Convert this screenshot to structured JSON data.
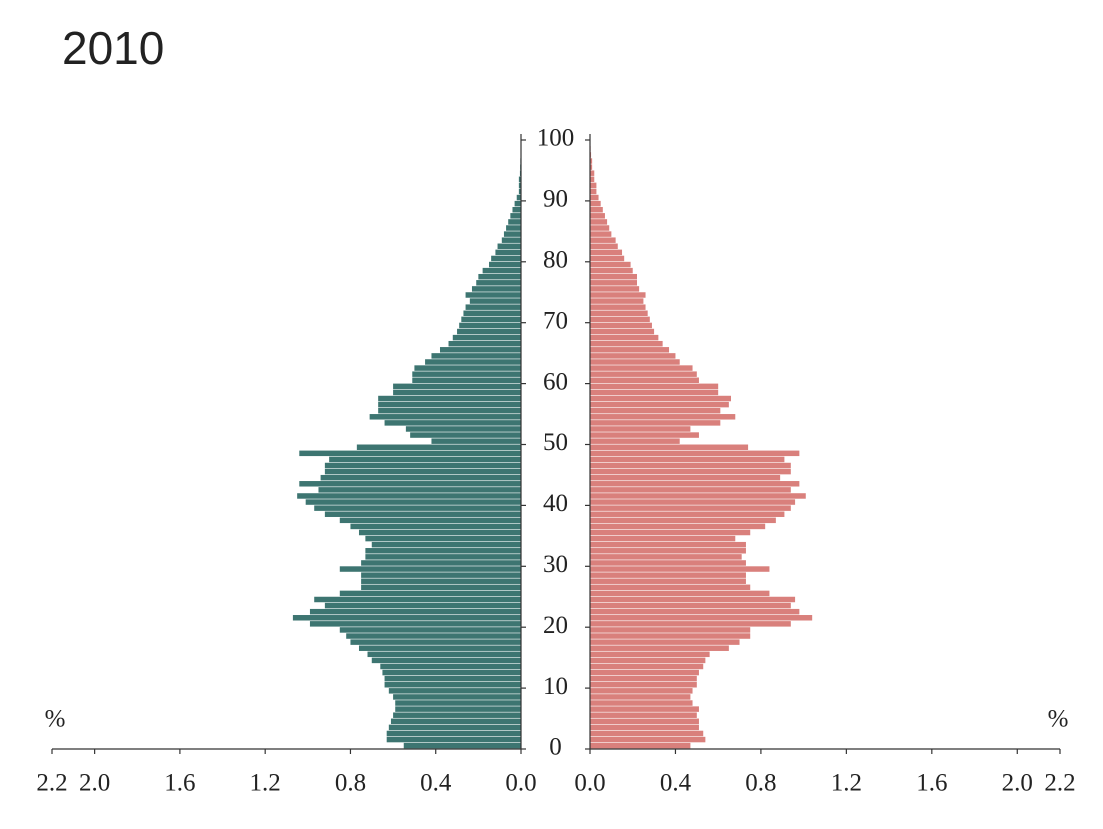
{
  "chart_data": {
    "type": "pyramid",
    "title": "2010",
    "xlabel": "%",
    "y": [
      0,
      1,
      2,
      3,
      4,
      5,
      6,
      7,
      8,
      9,
      10,
      11,
      12,
      13,
      14,
      15,
      16,
      17,
      18,
      19,
      20,
      21,
      22,
      23,
      24,
      25,
      26,
      27,
      28,
      29,
      30,
      31,
      32,
      33,
      34,
      35,
      36,
      37,
      38,
      39,
      40,
      41,
      42,
      43,
      44,
      45,
      46,
      47,
      48,
      49,
      50,
      51,
      52,
      53,
      54,
      55,
      56,
      57,
      58,
      59,
      60,
      61,
      62,
      63,
      64,
      65,
      66,
      67,
      68,
      69,
      70,
      71,
      72,
      73,
      74,
      75,
      76,
      77,
      78,
      79,
      80,
      81,
      82,
      83,
      84,
      85,
      86,
      87,
      88,
      89,
      90,
      91,
      92,
      93,
      94,
      95,
      96,
      97,
      98,
      99,
      100
    ],
    "ylim": [
      0,
      100
    ],
    "yticks": [
      0,
      10,
      20,
      30,
      40,
      50,
      60,
      70,
      80,
      90,
      100
    ],
    "xlim": [
      0,
      2.2
    ],
    "xticks": [
      {
        "value": 0,
        "label": "0.0"
      },
      {
        "value": 0.4,
        "label": "0.4"
      },
      {
        "value": 0.8,
        "label": "0.8"
      },
      {
        "value": 1.2,
        "label": "1.2"
      },
      {
        "value": 1.6,
        "label": "1.6"
      },
      {
        "value": 2,
        "label": "2.0"
      },
      {
        "value": 2.2,
        "label": "2.2"
      }
    ],
    "series": [
      {
        "color": "#3d7571",
        "values": [
          0.55,
          0.63,
          0.63,
          0.62,
          0.61,
          0.6,
          0.59,
          0.59,
          0.6,
          0.62,
          0.64,
          0.64,
          0.65,
          0.66,
          0.7,
          0.72,
          0.76,
          0.8,
          0.82,
          0.85,
          0.99,
          1.07,
          0.99,
          0.92,
          0.97,
          0.85,
          0.75,
          0.75,
          0.75,
          0.85,
          0.75,
          0.73,
          0.73,
          0.7,
          0.73,
          0.76,
          0.8,
          0.85,
          0.92,
          0.97,
          1.01,
          1.05,
          0.95,
          1.04,
          0.94,
          0.92,
          0.92,
          0.9,
          1.04,
          0.77,
          0.42,
          0.52,
          0.54,
          0.64,
          0.71,
          0.67,
          0.67,
          0.67,
          0.6,
          0.6,
          0.51,
          0.51,
          0.5,
          0.45,
          0.42,
          0.38,
          0.34,
          0.32,
          0.3,
          0.29,
          0.28,
          0.27,
          0.26,
          0.24,
          0.26,
          0.23,
          0.21,
          0.2,
          0.18,
          0.15,
          0.14,
          0.12,
          0.11,
          0.09,
          0.08,
          0.07,
          0.06,
          0.05,
          0.04,
          0.03,
          0.02,
          0.01,
          0.01,
          0.01,
          0.005,
          0.004,
          0.003,
          0.002,
          0.001,
          0.001,
          0
        ]
      },
      {
        "color": "#d9807c",
        "values": [
          0.47,
          0.54,
          0.53,
          0.51,
          0.51,
          0.5,
          0.51,
          0.48,
          0.47,
          0.48,
          0.5,
          0.5,
          0.51,
          0.53,
          0.54,
          0.56,
          0.65,
          0.7,
          0.75,
          0.75,
          0.94,
          1.04,
          0.98,
          0.94,
          0.96,
          0.84,
          0.75,
          0.73,
          0.73,
          0.84,
          0.73,
          0.71,
          0.73,
          0.73,
          0.68,
          0.75,
          0.82,
          0.87,
          0.91,
          0.94,
          0.96,
          1.01,
          0.94,
          0.98,
          0.89,
          0.94,
          0.94,
          0.91,
          0.98,
          0.74,
          0.42,
          0.51,
          0.47,
          0.61,
          0.68,
          0.61,
          0.65,
          0.66,
          0.6,
          0.6,
          0.51,
          0.5,
          0.48,
          0.42,
          0.4,
          0.37,
          0.34,
          0.32,
          0.3,
          0.29,
          0.28,
          0.27,
          0.26,
          0.25,
          0.26,
          0.23,
          0.22,
          0.22,
          0.2,
          0.19,
          0.16,
          0.15,
          0.13,
          0.12,
          0.1,
          0.09,
          0.08,
          0.07,
          0.06,
          0.05,
          0.04,
          0.03,
          0.03,
          0.02,
          0.02,
          0.01,
          0.01,
          0.005,
          0.003,
          0.002,
          0.001
        ]
      }
    ]
  }
}
